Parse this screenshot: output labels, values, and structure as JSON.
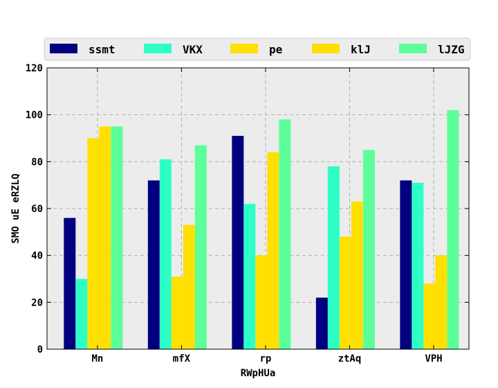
{
  "chart_data": {
    "type": "bar",
    "categories": [
      "Mn",
      "mfX",
      "rp",
      "ztAq",
      "VPH"
    ],
    "series": [
      {
        "name": "ssmt",
        "color": "#000080",
        "values": [
          56,
          72,
          91,
          22,
          72
        ]
      },
      {
        "name": "VKX",
        "color": "#2dffc6",
        "values": [
          30,
          81,
          62,
          78,
          71
        ]
      },
      {
        "name": "pe",
        "color": "#ffe000",
        "values": [
          90,
          31,
          40,
          48,
          28
        ]
      },
      {
        "name": "klJ",
        "color": "#ffdf00",
        "values": [
          95,
          53,
          84,
          63,
          40
        ]
      },
      {
        "name": "lJZG",
        "color": "#5cff99",
        "values": [
          95,
          87,
          98,
          85,
          102
        ]
      }
    ],
    "xlabel": "RWpHUa",
    "ylabel": "SMO  uE eRZLQ",
    "ylim": [
      0,
      120
    ],
    "yticks": [
      0,
      20,
      40,
      60,
      80,
      100,
      120
    ],
    "grid": true,
    "legend_position": "top"
  },
  "colors": {
    "plot_background": "#ececec",
    "grid": "#b0b0b0"
  }
}
